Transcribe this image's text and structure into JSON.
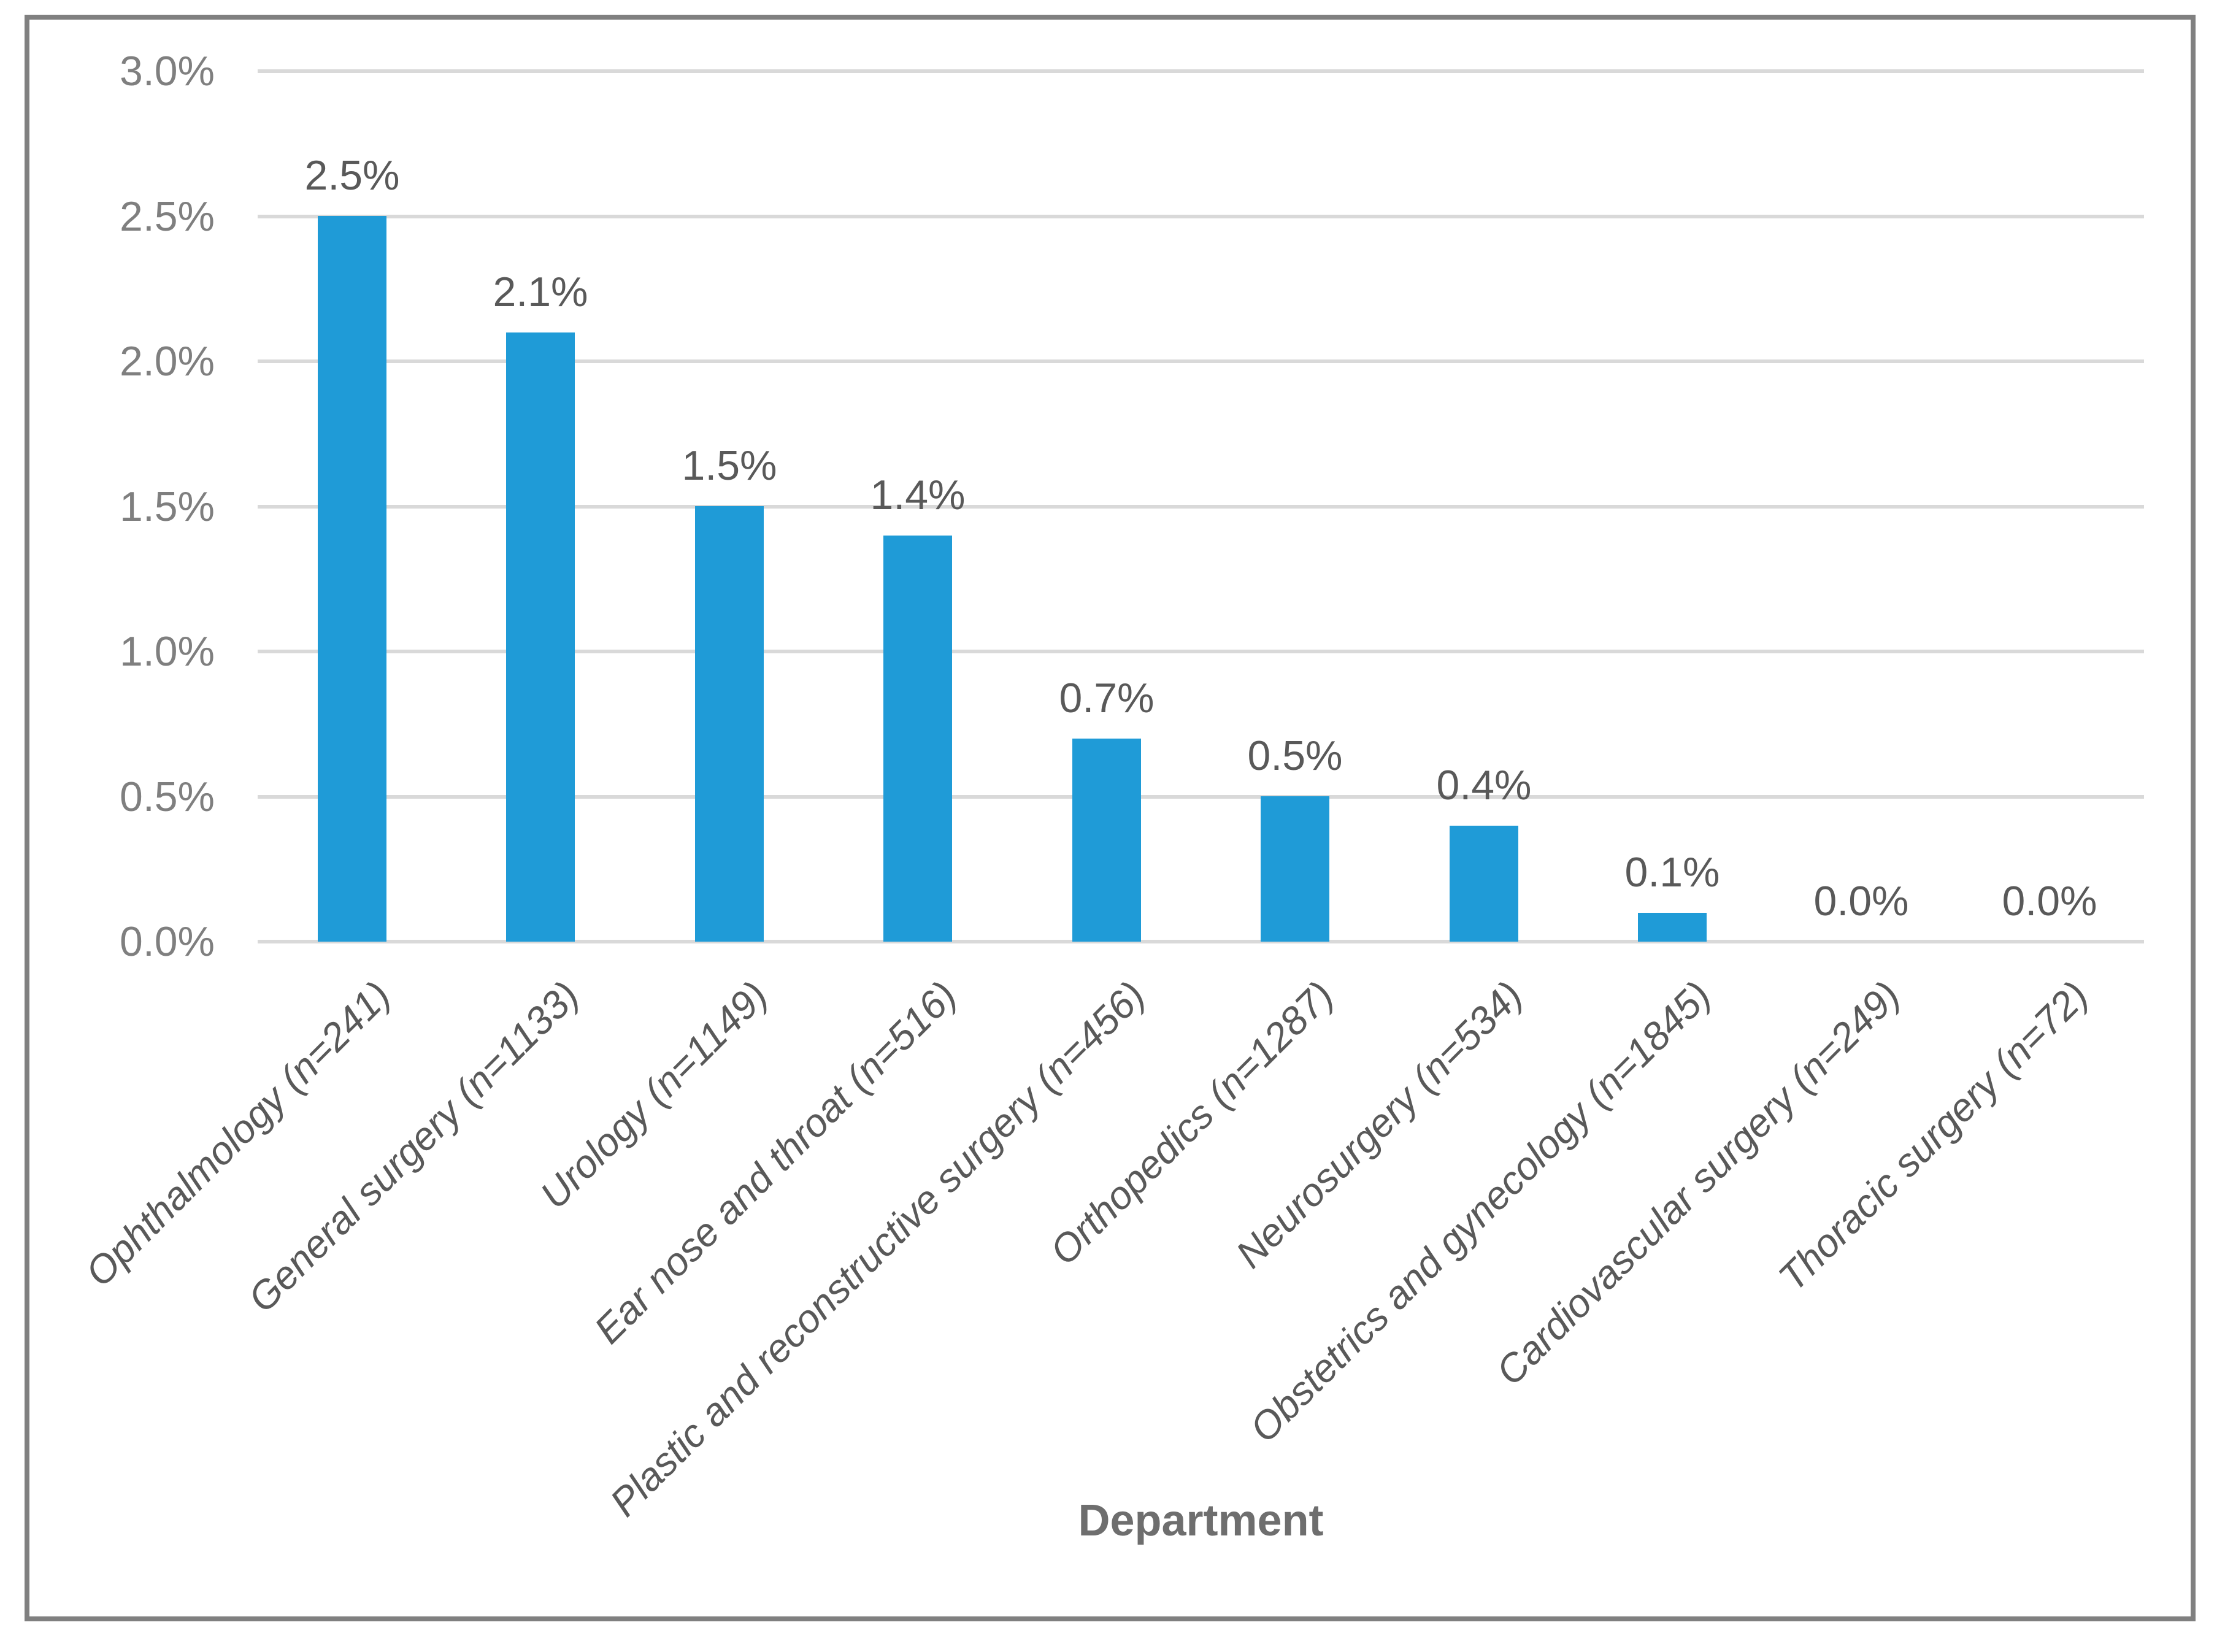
{
  "figure": {
    "kind": "excel-style bar chart",
    "x_axis_title": "Department"
  },
  "chart_data": {
    "type": "bar",
    "title": "",
    "xlabel": "Department",
    "ylabel": "",
    "categories": [
      "Ophthalmology (n=241)",
      "General surgery (n=1133)",
      "Urology (n=1149)",
      "Ear nose and throat (n=516)",
      "Plastic and reconstructive surgery (n=456)",
      "Orthopedics (n=1287)",
      "Neurosurgery (n=534)",
      "Obstetrics and gynecology (n=1845)",
      "Cardiovascular surgery (n=249)",
      "Thoracic surgery (n=72)"
    ],
    "values": [
      2.5,
      2.1,
      1.5,
      1.4,
      0.7,
      0.5,
      0.4,
      0.1,
      0.0,
      0.0
    ],
    "data_labels": [
      "2.5%",
      "2.1%",
      "1.5%",
      "1.4%",
      "0.7%",
      "0.5%",
      "0.4%",
      "0.1%",
      "0.0%",
      "0.0%"
    ],
    "ylim": [
      0,
      3
    ],
    "ytick_step": 0.5,
    "ytick_labels": [
      "0.0%",
      "0.5%",
      "1.0%",
      "1.5%",
      "2.0%",
      "2.5%",
      "3.0%"
    ],
    "grid": "horizontal",
    "legend_position": "none",
    "colors": {
      "bar": "#1F9BD7",
      "gridline": "#D9D9D9",
      "ytick_text": "#7F7F7F",
      "xtick_text": "#595959",
      "data_label_text": "#595959",
      "axis_title_text": "#6E6E6E",
      "frame_border": "#808080",
      "background": "#FFFFFF"
    }
  }
}
